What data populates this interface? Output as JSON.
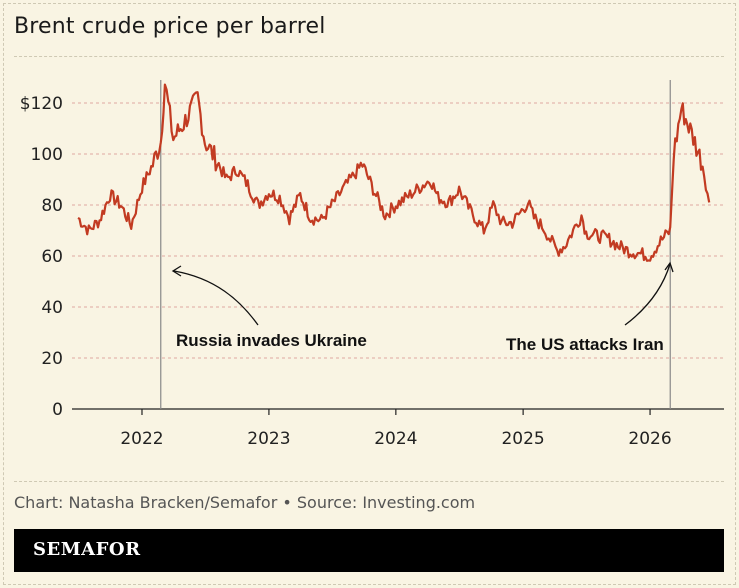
{
  "chart_data": {
    "type": "line",
    "title": "Brent crude price per barrel",
    "xlabel": "",
    "ylabel": "",
    "ylim": [
      0,
      120
    ],
    "xlim": [
      "2021-07",
      "2026-07"
    ],
    "y_ticks": [
      0,
      20,
      40,
      60,
      80,
      100,
      120
    ],
    "y_tick_labels": [
      "0",
      "20",
      "40",
      "60",
      "80",
      "100",
      "$120"
    ],
    "x_tick_labels": [
      "2022",
      "2023",
      "2024",
      "2025",
      "2026"
    ],
    "grid": true,
    "series": [
      {
        "color": "#c23b22",
        "x": [
          "2021-07-01",
          "2021-08-01",
          "2021-09-01",
          "2021-10-01",
          "2021-11-01",
          "2021-12-01",
          "2022-01-01",
          "2022-02-01",
          "2022-02-24",
          "2022-03-08",
          "2022-04-01",
          "2022-05-01",
          "2022-06-10",
          "2022-07-01",
          "2022-08-01",
          "2022-09-01",
          "2022-10-01",
          "2022-11-01",
          "2022-12-01",
          "2023-01-01",
          "2023-02-01",
          "2023-03-01",
          "2023-04-01",
          "2023-05-01",
          "2023-06-01",
          "2023-07-01",
          "2023-08-01",
          "2023-09-27",
          "2023-11-01",
          "2023-12-01",
          "2024-01-01",
          "2024-02-01",
          "2024-03-01",
          "2024-04-10",
          "2024-05-01",
          "2024-06-01",
          "2024-07-01",
          "2024-08-01",
          "2024-09-10",
          "2024-10-07",
          "2024-11-01",
          "2024-12-01",
          "2025-01-15",
          "2025-02-01",
          "2025-03-01",
          "2025-04-09",
          "2025-05-01",
          "2025-06-18",
          "2025-07-01",
          "2025-08-01",
          "2025-09-01",
          "2025-10-01",
          "2025-11-01",
          "2025-12-01",
          "2026-01-01",
          "2026-02-01",
          "2026-02-28",
          "2026-03-10",
          "2026-04-01",
          "2026-05-01",
          "2026-06-01",
          "2026-06-20"
        ],
        "values": [
          75,
          70,
          74,
          84,
          80,
          72,
          87,
          96,
          105,
          128,
          106,
          112,
          122,
          105,
          98,
          90,
          94,
          88,
          80,
          85,
          83,
          75,
          84,
          75,
          74,
          80,
          86,
          96,
          85,
          76,
          80,
          83,
          86,
          90,
          83,
          81,
          86,
          78,
          70,
          80,
          73,
          73,
          81,
          75,
          71,
          62,
          64,
          76,
          69,
          68,
          67,
          64,
          62,
          61,
          60,
          66,
          70,
          100,
          118,
          108,
          96,
          81
        ]
      }
    ],
    "annotations": [
      {
        "label": "Russia invades Ukraine",
        "x": "2022-02-24"
      },
      {
        "label": "The US attacks Iran",
        "x": "2026-02-28"
      }
    ]
  },
  "footer": {
    "credit": "Chart: Natasha Bracken/Semafor • Source: Investing.com",
    "brand": "SEMAFOR"
  }
}
